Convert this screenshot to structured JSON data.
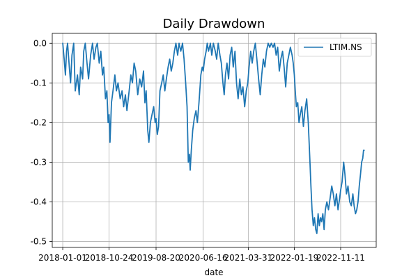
{
  "chart_data": {
    "type": "line",
    "title": "Daily Drawdown",
    "xlabel": "date",
    "ylabel": "",
    "grid": true,
    "legend_position": "upper-right",
    "x_ticks": [
      "2018-01-01",
      "2018-10-24",
      "2019-08-20",
      "2020-06-16",
      "2021-03-31",
      "2022-01-19",
      "2022-11-11"
    ],
    "y_ticks": [
      "0.0",
      "-0.1",
      "-0.2",
      "-0.3",
      "-0.4",
      "-0.5"
    ],
    "xlim": [
      "2017-10-26",
      "2023-06-26"
    ],
    "ylim": [
      -0.515,
      0.025
    ],
    "series": [
      {
        "name": "LTIM.NS",
        "color": "#1f77b4",
        "points": [
          [
            "2018-01-01",
            0.0
          ],
          [
            "2018-01-10",
            -0.04
          ],
          [
            "2018-01-18",
            -0.08
          ],
          [
            "2018-01-25",
            -0.02
          ],
          [
            "2018-02-01",
            0.0
          ],
          [
            "2018-02-12",
            -0.06
          ],
          [
            "2018-02-20",
            -0.1
          ],
          [
            "2018-03-01",
            -0.03
          ],
          [
            "2018-03-12",
            0.0
          ],
          [
            "2018-03-22",
            -0.12
          ],
          [
            "2018-04-05",
            -0.08
          ],
          [
            "2018-04-16",
            -0.13
          ],
          [
            "2018-04-25",
            -0.06
          ],
          [
            "2018-05-08",
            -0.09
          ],
          [
            "2018-05-15",
            -0.02
          ],
          [
            "2018-05-25",
            0.0
          ],
          [
            "2018-06-05",
            -0.05
          ],
          [
            "2018-06-15",
            -0.09
          ],
          [
            "2018-06-28",
            -0.03
          ],
          [
            "2018-07-10",
            0.0
          ],
          [
            "2018-07-20",
            -0.04
          ],
          [
            "2018-08-01",
            -0.01
          ],
          [
            "2018-08-10",
            0.0
          ],
          [
            "2018-08-22",
            -0.05
          ],
          [
            "2018-09-01",
            -0.02
          ],
          [
            "2018-09-12",
            -0.08
          ],
          [
            "2018-09-20",
            -0.06
          ],
          [
            "2018-10-01",
            -0.14
          ],
          [
            "2018-10-10",
            -0.12
          ],
          [
            "2018-10-18",
            -0.2
          ],
          [
            "2018-10-24",
            -0.18
          ],
          [
            "2018-10-30",
            -0.25
          ],
          [
            "2018-11-08",
            -0.15
          ],
          [
            "2018-11-18",
            -0.12
          ],
          [
            "2018-11-30",
            -0.08
          ],
          [
            "2018-12-10",
            -0.12
          ],
          [
            "2018-12-20",
            -0.1
          ],
          [
            "2019-01-03",
            -0.14
          ],
          [
            "2019-01-15",
            -0.12
          ],
          [
            "2019-01-25",
            -0.16
          ],
          [
            "2019-02-05",
            -0.13
          ],
          [
            "2019-02-15",
            -0.17
          ],
          [
            "2019-03-01",
            -0.12
          ],
          [
            "2019-03-12",
            -0.08
          ],
          [
            "2019-03-22",
            -0.1
          ],
          [
            "2019-04-02",
            -0.05
          ],
          [
            "2019-04-12",
            -0.07
          ],
          [
            "2019-04-25",
            -0.13
          ],
          [
            "2019-05-08",
            -0.09
          ],
          [
            "2019-05-20",
            -0.11
          ],
          [
            "2019-06-01",
            -0.07
          ],
          [
            "2019-06-10",
            -0.15
          ],
          [
            "2019-06-18",
            -0.12
          ],
          [
            "2019-06-28",
            -0.22
          ],
          [
            "2019-07-05",
            -0.25
          ],
          [
            "2019-07-15",
            -0.2
          ],
          [
            "2019-07-25",
            -0.18
          ],
          [
            "2019-08-05",
            -0.16
          ],
          [
            "2019-08-14",
            -0.2
          ],
          [
            "2019-08-20",
            -0.19
          ],
          [
            "2019-08-28",
            -0.23
          ],
          [
            "2019-09-05",
            -0.21
          ],
          [
            "2019-09-14",
            -0.12
          ],
          [
            "2019-09-25",
            -0.1
          ],
          [
            "2019-10-05",
            -0.08
          ],
          [
            "2019-10-15",
            -0.12
          ],
          [
            "2019-10-25",
            -0.09
          ],
          [
            "2019-11-05",
            -0.06
          ],
          [
            "2019-11-15",
            -0.04
          ],
          [
            "2019-11-25",
            -0.07
          ],
          [
            "2019-12-05",
            -0.05
          ],
          [
            "2019-12-15",
            -0.02
          ],
          [
            "2019-12-25",
            0.0
          ],
          [
            "2020-01-05",
            -0.03
          ],
          [
            "2020-01-14",
            0.0
          ],
          [
            "2020-01-25",
            -0.02
          ],
          [
            "2020-02-05",
            0.0
          ],
          [
            "2020-02-15",
            -0.04
          ],
          [
            "2020-02-25",
            -0.1
          ],
          [
            "2020-03-05",
            -0.16
          ],
          [
            "2020-03-13",
            -0.3
          ],
          [
            "2020-03-20",
            -0.28
          ],
          [
            "2020-03-25",
            -0.32
          ],
          [
            "2020-04-01",
            -0.27
          ],
          [
            "2020-04-10",
            -0.22
          ],
          [
            "2020-04-20",
            -0.19
          ],
          [
            "2020-05-01",
            -0.17
          ],
          [
            "2020-05-10",
            -0.2
          ],
          [
            "2020-05-20",
            -0.15
          ],
          [
            "2020-06-01",
            -0.08
          ],
          [
            "2020-06-10",
            -0.06
          ],
          [
            "2020-06-16",
            -0.07
          ],
          [
            "2020-06-25",
            -0.04
          ],
          [
            "2020-07-05",
            -0.02
          ],
          [
            "2020-07-12",
            0.0
          ],
          [
            "2020-07-20",
            -0.02
          ],
          [
            "2020-08-01",
            0.0
          ],
          [
            "2020-08-10",
            -0.03
          ],
          [
            "2020-08-20",
            0.0
          ],
          [
            "2020-09-01",
            -0.02
          ],
          [
            "2020-09-10",
            -0.04
          ],
          [
            "2020-09-20",
            0.0
          ],
          [
            "2020-10-01",
            -0.03
          ],
          [
            "2020-10-10",
            -0.05
          ],
          [
            "2020-10-20",
            -0.1
          ],
          [
            "2020-10-28",
            -0.13
          ],
          [
            "2020-11-05",
            -0.08
          ],
          [
            "2020-11-15",
            -0.05
          ],
          [
            "2020-11-25",
            -0.09
          ],
          [
            "2020-12-05",
            -0.03
          ],
          [
            "2020-12-15",
            -0.01
          ],
          [
            "2020-12-25",
            -0.06
          ],
          [
            "2021-01-05",
            -0.02
          ],
          [
            "2021-01-15",
            -0.1
          ],
          [
            "2021-01-25",
            -0.14
          ],
          [
            "2021-02-05",
            -0.09
          ],
          [
            "2021-02-15",
            -0.13
          ],
          [
            "2021-02-25",
            -0.11
          ],
          [
            "2021-03-08",
            -0.16
          ],
          [
            "2021-03-18",
            -0.12
          ],
          [
            "2021-03-28",
            -0.1
          ],
          [
            "2021-04-05",
            -0.06
          ],
          [
            "2021-04-15",
            -0.02
          ],
          [
            "2021-04-25",
            -0.05
          ],
          [
            "2021-05-05",
            -0.02
          ],
          [
            "2021-05-15",
            0.0
          ],
          [
            "2021-05-25",
            -0.04
          ],
          [
            "2021-06-05",
            -0.09
          ],
          [
            "2021-06-15",
            -0.13
          ],
          [
            "2021-06-25",
            -0.08
          ],
          [
            "2021-07-05",
            -0.04
          ],
          [
            "2021-07-15",
            -0.06
          ],
          [
            "2021-07-25",
            -0.02
          ],
          [
            "2021-08-05",
            0.0
          ],
          [
            "2021-08-15",
            -0.01
          ],
          [
            "2021-08-25",
            0.0
          ],
          [
            "2021-09-05",
            -0.01
          ],
          [
            "2021-09-15",
            0.0
          ],
          [
            "2021-09-25",
            -0.03
          ],
          [
            "2021-10-05",
            -0.01
          ],
          [
            "2021-10-15",
            -0.07
          ],
          [
            "2021-10-25",
            -0.04
          ],
          [
            "2021-11-05",
            -0.02
          ],
          [
            "2021-11-15",
            -0.06
          ],
          [
            "2021-11-25",
            -0.11
          ],
          [
            "2021-12-05",
            -0.05
          ],
          [
            "2021-12-15",
            -0.03
          ],
          [
            "2021-12-25",
            -0.01
          ],
          [
            "2022-01-05",
            -0.03
          ],
          [
            "2022-01-12",
            -0.05
          ],
          [
            "2022-01-19",
            -0.08
          ],
          [
            "2022-01-25",
            -0.12
          ],
          [
            "2022-02-01",
            -0.16
          ],
          [
            "2022-02-10",
            -0.15
          ],
          [
            "2022-02-18",
            -0.2
          ],
          [
            "2022-02-26",
            -0.18
          ],
          [
            "2022-03-08",
            -0.16
          ],
          [
            "2022-03-18",
            -0.21
          ],
          [
            "2022-03-28",
            -0.17
          ],
          [
            "2022-04-08",
            -0.14
          ],
          [
            "2022-04-18",
            -0.2
          ],
          [
            "2022-04-28",
            -0.29
          ],
          [
            "2022-05-05",
            -0.36
          ],
          [
            "2022-05-12",
            -0.42
          ],
          [
            "2022-05-20",
            -0.46
          ],
          [
            "2022-05-28",
            -0.44
          ],
          [
            "2022-06-05",
            -0.47
          ],
          [
            "2022-06-12",
            -0.48
          ],
          [
            "2022-06-20",
            -0.43
          ],
          [
            "2022-06-28",
            -0.46
          ],
          [
            "2022-07-05",
            -0.44
          ],
          [
            "2022-07-12",
            -0.45
          ],
          [
            "2022-07-20",
            -0.43
          ],
          [
            "2022-07-28",
            -0.47
          ],
          [
            "2022-08-05",
            -0.42
          ],
          [
            "2022-08-15",
            -0.4
          ],
          [
            "2022-08-25",
            -0.42
          ],
          [
            "2022-09-05",
            -0.39
          ],
          [
            "2022-09-15",
            -0.36
          ],
          [
            "2022-09-25",
            -0.38
          ],
          [
            "2022-10-05",
            -0.41
          ],
          [
            "2022-10-15",
            -0.38
          ],
          [
            "2022-10-25",
            -0.42
          ],
          [
            "2022-11-05",
            -0.39
          ],
          [
            "2022-11-11",
            -0.37
          ],
          [
            "2022-11-20",
            -0.35
          ],
          [
            "2022-11-30",
            -0.3
          ],
          [
            "2022-12-08",
            -0.33
          ],
          [
            "2022-12-18",
            -0.38
          ],
          [
            "2022-12-28",
            -0.36
          ],
          [
            "2023-01-08",
            -0.4
          ],
          [
            "2023-01-18",
            -0.41
          ],
          [
            "2023-01-28",
            -0.38
          ],
          [
            "2023-02-05",
            -0.41
          ],
          [
            "2023-02-14",
            -0.43
          ],
          [
            "2023-02-22",
            -0.42
          ],
          [
            "2023-03-02",
            -0.4
          ],
          [
            "2023-03-10",
            -0.36
          ],
          [
            "2023-03-18",
            -0.33
          ],
          [
            "2023-03-25",
            -0.3
          ],
          [
            "2023-04-01",
            -0.29
          ],
          [
            "2023-04-06",
            -0.27
          ],
          [
            "2023-04-10",
            -0.27
          ]
        ]
      }
    ]
  }
}
